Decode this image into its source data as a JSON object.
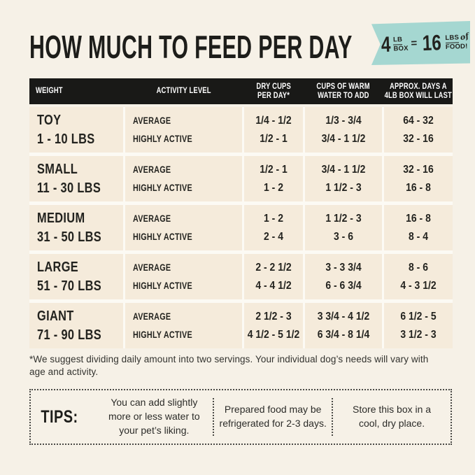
{
  "page": {
    "title": "HOW MUCH TO FEED PER DAY"
  },
  "badge": {
    "value1": "4",
    "unit1_top": "LB",
    "unit1_bottom": "BOX",
    "equals": "=",
    "value2": "16",
    "unit2_top": "LBS",
    "unit2_script": "of",
    "unit2_bottom": "FOOD!"
  },
  "colors": {
    "page_background": "#f6f1e7",
    "row_background": "#f5ebdb",
    "header_background": "#191917",
    "header_text": "#ffffff",
    "badge_teal": "#a5d7d1",
    "text": "#23231f"
  },
  "table": {
    "headers": [
      {
        "lines": [
          "WEIGHT"
        ]
      },
      {
        "lines": [
          "ACTIVITY LEVEL"
        ]
      },
      {
        "lines": [
          "DRY CUPS",
          "PER DAY*"
        ]
      },
      {
        "lines": [
          "CUPS OF WARM",
          "WATER TO ADD"
        ]
      },
      {
        "lines": [
          "APPROX. DAYS A",
          "4LB BOX WILL LAST"
        ]
      }
    ],
    "rows": [
      {
        "weight_name": "TOY",
        "weight_range": "1 - 10 LBS",
        "activity": [
          "AVERAGE",
          "HIGHLY ACTIVE"
        ],
        "dry_cups": [
          "1/4 - 1/2",
          "1/2 - 1"
        ],
        "water": [
          "1/3 - 3/4",
          "3/4 - 1 1/2"
        ],
        "days": [
          "64 - 32",
          "32 - 16"
        ]
      },
      {
        "weight_name": "SMALL",
        "weight_range": "11 - 30 LBS",
        "activity": [
          "AVERAGE",
          "HIGHLY ACTIVE"
        ],
        "dry_cups": [
          "1/2 - 1",
          "1 - 2"
        ],
        "water": [
          "3/4 - 1 1/2",
          "1 1/2 - 3"
        ],
        "days": [
          "32 - 16",
          "16 - 8"
        ]
      },
      {
        "weight_name": "MEDIUM",
        "weight_range": "31 - 50 LBS",
        "activity": [
          "AVERAGE",
          "HIGHLY ACTIVE"
        ],
        "dry_cups": [
          "1 - 2",
          "2 - 4"
        ],
        "water": [
          "1 1/2 - 3",
          "3 - 6"
        ],
        "days": [
          "16 - 8",
          "8 - 4"
        ]
      },
      {
        "weight_name": "LARGE",
        "weight_range": "51 - 70 LBS",
        "activity": [
          "AVERAGE",
          "HIGHLY ACTIVE"
        ],
        "dry_cups": [
          "2 - 2 1/2",
          "4 - 4 1/2"
        ],
        "water": [
          "3 - 3 3/4",
          "6 - 6 3/4"
        ],
        "days": [
          "8 - 6",
          "4 - 3 1/2"
        ]
      },
      {
        "weight_name": "GIANT",
        "weight_range": "71 - 90 LBS",
        "activity": [
          "AVERAGE",
          "HIGHLY ACTIVE"
        ],
        "dry_cups": [
          "2 1/2 - 3",
          "4 1/2 - 5 1/2"
        ],
        "water": [
          "3 3/4 - 4 1/2",
          "6 3/4 - 8 1/4"
        ],
        "days": [
          "6 1/2 - 5",
          "3 1/2 - 3"
        ]
      }
    ]
  },
  "footnote": "*We suggest dividing daily amount into two servings. Your individual dog’s needs will vary with age and activity.",
  "tips": {
    "label": "TIPS:",
    "items": [
      "You can add slightly more or less water to your pet’s liking.",
      "Prepared food may be refrigerated for 2-3 days.",
      "Store this box in a cool, dry place."
    ]
  }
}
